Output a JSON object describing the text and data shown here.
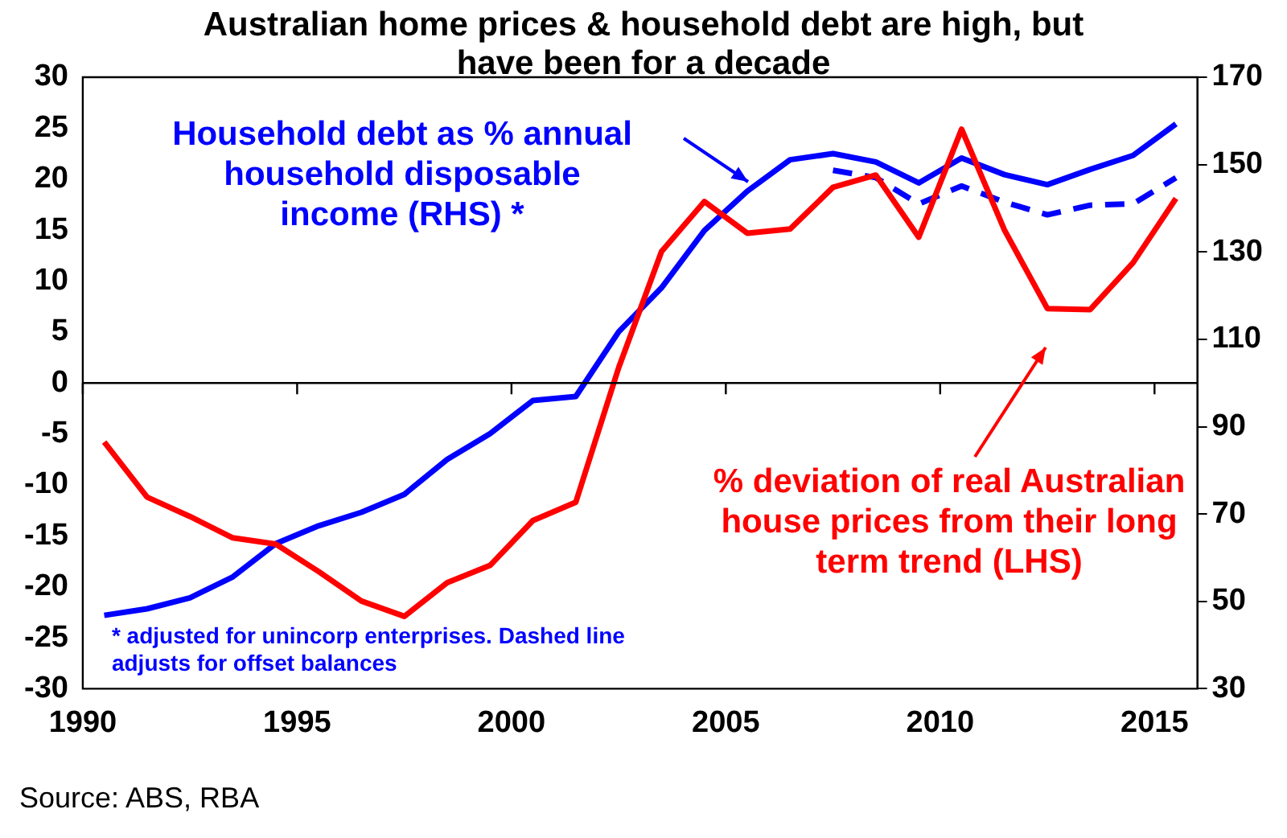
{
  "chart_data": {
    "type": "line",
    "title": "Australian home prices & household debt are high, but have been for a decade",
    "x": [
      1990.5,
      1991.5,
      1992.5,
      1993.5,
      1994.5,
      1995.5,
      1996.5,
      1997.5,
      1998.5,
      1999.5,
      2000.5,
      2001.5,
      2002.5,
      2003.5,
      2004.5,
      2005.5,
      2006.5,
      2007.5,
      2008.5,
      2009.5,
      2010.5,
      2011.5,
      2012.5,
      2013.5,
      2014.5,
      2015.5
    ],
    "series": [
      {
        "name": "% deviation of real Australian house prices from their long term trend (LHS)",
        "color": "#ff0000",
        "axis": "y",
        "values": [
          -5.8,
          -11.2,
          -13.1,
          -15.2,
          -15.8,
          -18.5,
          -21.4,
          -22.9,
          -19.6,
          -17.9,
          -13.5,
          -11.7,
          1.5,
          12.9,
          17.8,
          14.7,
          15.1,
          19.2,
          20.4,
          14.3,
          24.9,
          15.0,
          7.3,
          7.2,
          11.8,
          18.1
        ]
      },
      {
        "name": "Household debt as % annual household disposable income (RHS) *",
        "color": "#0000ff",
        "axis": "y2",
        "values": [
          46.8,
          48.3,
          50.8,
          55.6,
          63.2,
          67.3,
          70.4,
          74.5,
          82.5,
          88.4,
          96.0,
          96.9,
          111.7,
          121.8,
          134.9,
          143.9,
          151.1,
          152.5,
          150.6,
          145.8,
          151.5,
          147.7,
          145.4,
          148.9,
          152.1,
          159.3
        ]
      },
      {
        "color": "#0000ff",
        "axis": "y2",
        "line_style": "dashed",
        "values": [
          null,
          null,
          null,
          null,
          null,
          null,
          null,
          null,
          null,
          null,
          null,
          null,
          null,
          null,
          null,
          null,
          null,
          148.7,
          147.0,
          141.0,
          145.1,
          141.4,
          138.5,
          140.7,
          141.0,
          147.0
        ]
      }
    ],
    "xlim": [
      1990,
      2016
    ],
    "xticks": [
      1990,
      1995,
      2000,
      2005,
      2010,
      2015
    ],
    "ylim": [
      -30,
      30
    ],
    "yticks": [
      -30,
      -25,
      -20,
      -15,
      -10,
      -5,
      0,
      5,
      10,
      15,
      20,
      25,
      30
    ],
    "y2lim": [
      30,
      170
    ],
    "y2ticks": [
      30,
      50,
      70,
      90,
      110,
      130,
      150,
      170
    ],
    "ref_lines": [
      {
        "axis": "y",
        "value": 0,
        "color": "#000000"
      }
    ],
    "grid": false,
    "legend": "top left",
    "marker": "none",
    "line_style": "solid",
    "annotations": [
      "* adjusted for unincorp enterprises. Dashed line adjusts for offset balances",
      "Source: ABS, RBA"
    ]
  }
}
